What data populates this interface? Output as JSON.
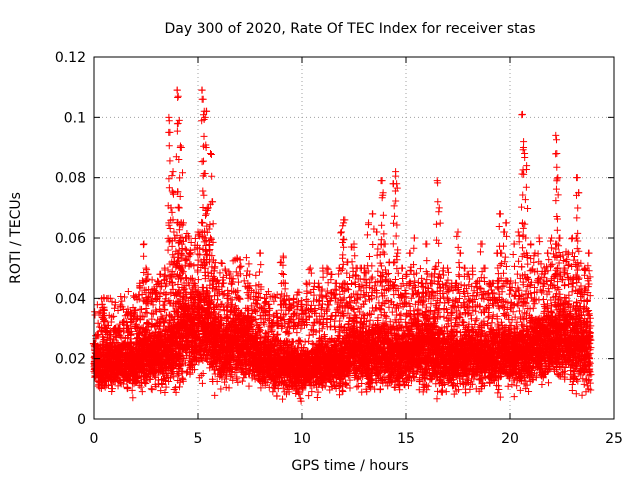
{
  "chart_data": {
    "type": "scatter",
    "title": "Day 300 of 2020, Rate Of TEC Index for receiver stas",
    "xlabel": "GPS time / hours",
    "ylabel": "ROTI / TECUs",
    "xlim": [
      0,
      25
    ],
    "ylim": [
      0,
      0.12
    ],
    "x_ticks": [
      0,
      5,
      10,
      15,
      20,
      25
    ],
    "x_tick_labels": [
      "0",
      "5",
      "10",
      "15",
      "20",
      "25"
    ],
    "y_ticks": [
      0,
      0.02,
      0.04,
      0.06,
      0.08,
      0.1,
      0.12
    ],
    "y_tick_labels": [
      "0",
      "0.02",
      "0.04",
      "0.06",
      "0.08",
      "0.1",
      "0.12"
    ],
    "grid": true,
    "marker": "+",
    "color": "#ff0000",
    "series": [
      {
        "x": [
          0.0,
          0.2,
          0.4,
          0.5,
          0.6,
          0.8,
          1.0,
          1.2,
          1.4,
          1.6,
          1.8,
          2.0,
          2.2,
          2.4,
          2.5,
          2.6,
          2.8,
          3.0,
          3.2,
          3.4,
          3.6,
          3.7,
          3.8,
          3.9,
          4.0,
          4.1,
          4.15,
          4.2,
          4.3,
          4.4,
          4.6,
          4.8,
          5.0,
          5.2,
          5.3,
          5.4,
          5.5,
          5.6,
          5.8,
          6.0,
          6.2,
          6.4,
          6.6,
          6.8,
          7.0,
          7.2,
          7.4,
          7.6,
          7.8,
          8.0,
          8.2,
          8.4,
          8.6,
          8.8,
          9.0,
          9.2,
          9.4,
          9.6,
          9.8,
          10.0,
          10.2,
          10.4,
          10.6,
          10.8,
          11.0,
          11.2,
          11.4,
          11.6,
          11.8,
          12.0,
          12.2,
          12.4,
          12.6,
          12.8,
          13.0,
          13.2,
          13.4,
          13.6,
          13.8,
          14.0,
          14.2,
          14.4,
          14.6,
          14.8,
          15.0,
          15.2,
          15.4,
          15.6,
          15.8,
          16.0,
          16.2,
          16.4,
          16.6,
          16.8,
          17.0,
          17.2,
          17.4,
          17.6,
          17.8,
          18.0,
          18.2,
          18.4,
          18.6,
          18.8,
          19.0,
          19.2,
          19.4,
          19.6,
          19.8,
          20.0,
          20.2,
          20.4,
          20.6,
          20.8,
          21.0,
          21.2,
          21.4,
          21.6,
          21.8,
          22.0,
          22.2,
          22.4,
          22.6,
          22.8,
          23.0,
          23.2,
          23.4,
          23.6,
          23.8,
          3.6,
          3.65,
          4.0,
          4.05,
          4.1,
          4.2,
          5.2,
          5.25,
          5.3,
          5.35,
          5.4,
          13.8,
          13.9,
          14.5,
          14.55,
          16.5,
          20.6,
          20.65,
          20.7,
          20.8,
          22.2,
          22.25,
          22.3,
          23.2,
          23.3,
          12.0,
          12.5,
          16.6,
          17.5,
          19.5,
          19.7,
          5.6,
          5.7,
          3.8,
          9.1,
          11.9
        ],
        "y": [
          0.025,
          0.028,
          0.038,
          0.036,
          0.03,
          0.028,
          0.03,
          0.03,
          0.032,
          0.03,
          0.035,
          0.036,
          0.045,
          0.058,
          0.05,
          0.048,
          0.042,
          0.042,
          0.048,
          0.05,
          0.065,
          0.07,
          0.075,
          0.06,
          0.065,
          0.07,
          0.06,
          0.065,
          0.065,
          0.06,
          0.055,
          0.045,
          0.062,
          0.065,
          0.06,
          0.068,
          0.07,
          0.06,
          0.05,
          0.045,
          0.045,
          0.04,
          0.045,
          0.042,
          0.04,
          0.032,
          0.045,
          0.035,
          0.042,
          0.055,
          0.04,
          0.038,
          0.032,
          0.035,
          0.052,
          0.045,
          0.038,
          0.04,
          0.042,
          0.038,
          0.045,
          0.05,
          0.045,
          0.045,
          0.05,
          0.05,
          0.048,
          0.045,
          0.05,
          0.065,
          0.052,
          0.057,
          0.05,
          0.05,
          0.05,
          0.065,
          0.068,
          0.062,
          0.058,
          0.058,
          0.052,
          0.078,
          0.055,
          0.05,
          0.048,
          0.055,
          0.06,
          0.042,
          0.045,
          0.058,
          0.045,
          0.05,
          0.048,
          0.05,
          0.05,
          0.045,
          0.045,
          0.055,
          0.05,
          0.048,
          0.05,
          0.045,
          0.058,
          0.05,
          0.045,
          0.045,
          0.055,
          0.055,
          0.065,
          0.045,
          0.058,
          0.062,
          0.065,
          0.055,
          0.058,
          0.055,
          0.06,
          0.045,
          0.055,
          0.06,
          0.058,
          0.06,
          0.05,
          0.055,
          0.06,
          0.06,
          0.042,
          0.05,
          0.055,
          0.1,
          0.095,
          0.109,
          0.107,
          0.099,
          0.09,
          0.109,
          0.106,
          0.102,
          0.1,
          0.102,
          0.079,
          0.075,
          0.082,
          0.078,
          0.079,
          0.101,
          0.09,
          0.088,
          0.084,
          0.094,
          0.088,
          0.08,
          0.08,
          0.075,
          0.066,
          0.058,
          0.07,
          0.062,
          0.068,
          0.062,
          0.088,
          0.072,
          0.082,
          0.054,
          0.062
        ],
        "band_low": [
          0.012,
          0.006,
          0.007,
          0.008,
          0.007,
          0.009,
          0.008,
          0.007,
          0.006,
          0.006,
          0.008,
          0.007,
          0.008,
          0.006,
          0.007,
          0.007,
          0.006,
          0.006,
          0.007,
          0.007,
          0.006,
          0.008,
          0.008,
          0.007,
          0.009,
          0.008,
          0.008,
          0.007,
          0.007,
          0.006,
          0.007,
          0.006,
          0.008,
          0.007,
          0.006,
          0.008,
          0.008,
          0.007,
          0.007,
          0.007,
          0.006,
          0.007,
          0.006,
          0.006,
          0.006,
          0.006,
          0.006,
          0.006,
          0.005,
          0.004,
          0.005,
          0.006,
          0.006,
          0.006,
          0.007,
          0.008,
          0.007,
          0.008,
          0.007,
          0.006,
          0.007,
          0.007,
          0.007,
          0.006,
          0.006,
          0.005,
          0.005,
          0.006,
          0.007,
          0.008,
          0.007,
          0.006,
          0.007,
          0.006,
          0.005,
          0.006,
          0.006,
          0.007,
          0.005,
          0.005,
          0.007,
          0.006,
          0.005,
          0.004,
          0.007,
          0.006,
          0.006,
          0.006,
          0.007,
          0.006,
          0.007,
          0.008,
          0.007,
          0.007,
          0.008,
          0.007,
          0.007,
          0.006,
          0.007,
          0.007,
          0.007,
          0.006,
          0.007,
          0.006,
          0.007,
          0.008,
          0.007,
          0.007,
          0.008,
          0.008,
          0.007,
          0.006,
          0.008,
          0.007,
          0.007,
          0.006,
          0.007,
          0.007,
          0.006,
          0.006,
          0.007,
          0.004,
          0.005,
          0.004,
          0.004,
          0.005,
          0.006,
          0.005,
          0.006
        ],
        "band_high": [
          0.026,
          0.028,
          0.03,
          0.03,
          0.028,
          0.028,
          0.03,
          0.03,
          0.032,
          0.03,
          0.032,
          0.034,
          0.035,
          0.036,
          0.035,
          0.035,
          0.035,
          0.036,
          0.038,
          0.04,
          0.045,
          0.048,
          0.05,
          0.05,
          0.05,
          0.05,
          0.048,
          0.048,
          0.045,
          0.042,
          0.04,
          0.038,
          0.04,
          0.042,
          0.042,
          0.042,
          0.042,
          0.04,
          0.036,
          0.034,
          0.032,
          0.032,
          0.03,
          0.03,
          0.03,
          0.028,
          0.03,
          0.028,
          0.028,
          0.028,
          0.028,
          0.028,
          0.028,
          0.028,
          0.03,
          0.03,
          0.03,
          0.03,
          0.032,
          0.032,
          0.034,
          0.036,
          0.036,
          0.036,
          0.038,
          0.038,
          0.036,
          0.036,
          0.036,
          0.036,
          0.036,
          0.036,
          0.034,
          0.034,
          0.036,
          0.038,
          0.04,
          0.04,
          0.038,
          0.038,
          0.038,
          0.038,
          0.036,
          0.034,
          0.034,
          0.034,
          0.034,
          0.032,
          0.032,
          0.034,
          0.034,
          0.034,
          0.034,
          0.034,
          0.034,
          0.034,
          0.034,
          0.034,
          0.034,
          0.034,
          0.034,
          0.034,
          0.035,
          0.035,
          0.036,
          0.038,
          0.04,
          0.04,
          0.042,
          0.042,
          0.044,
          0.045,
          0.045,
          0.044,
          0.042,
          0.042,
          0.04,
          0.04,
          0.038,
          0.038,
          0.038,
          0.036,
          0.036,
          0.035,
          0.035,
          0.034,
          0.032,
          0.03,
          0.03
        ]
      }
    ]
  }
}
